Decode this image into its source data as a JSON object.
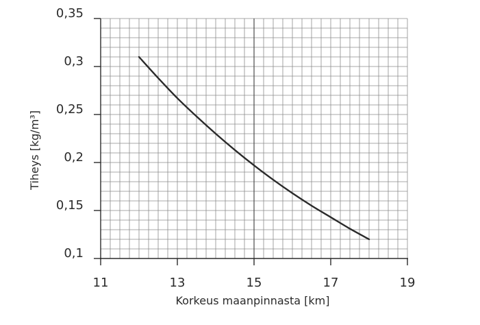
{
  "chart_data": {
    "type": "line",
    "title": "",
    "xlabel": "Korkeus maanpinnasta [km]",
    "ylabel": "Tiheys [kg/m³]",
    "xlim": [
      11,
      19
    ],
    "ylim": [
      0.1,
      0.35
    ],
    "x_ticks": [
      "11",
      "13",
      "15",
      "17",
      "19"
    ],
    "y_ticks": [
      "0,1",
      "0,15",
      "0,2",
      "0,25",
      "0,3",
      "0,35"
    ],
    "grid": true,
    "series": [
      {
        "line_color": "#2a2a2a",
        "x": [
          12,
          12.5,
          13,
          13.5,
          14,
          14.5,
          15,
          15.5,
          16,
          16.5,
          17,
          17.5,
          18
        ],
        "y": [
          0.31,
          0.288,
          0.267,
          0.248,
          0.23,
          0.213,
          0.197,
          0.182,
          0.168,
          0.155,
          0.143,
          0.131,
          0.12
        ]
      }
    ]
  }
}
